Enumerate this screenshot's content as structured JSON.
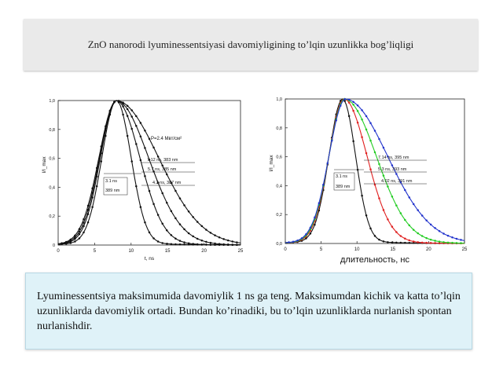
{
  "slide": {
    "title": "ZnO nanorodi lyuminessentsiyasi davomiyligining to’lqin uzunlikka bog’liqligi",
    "caption": "Lyuminessentsiya maksimumida davomiylik 1 ns ga teng. Maksimumdan kichik va katta to’lqin uzunliklarda davomiylik ortadi. Bundan ko’rinadiki, bu to’lqin uzunliklarda nurlanish spontan nurlanishdir."
  },
  "chart_data": [
    {
      "type": "line",
      "title": "",
      "xlabel": "t, ns",
      "ylabel": "I/I_max",
      "xlim": [
        0,
        25
      ],
      "ylim": [
        0,
        1.0
      ],
      "xticks": [
        "0",
        "5",
        "10",
        "15",
        "20",
        "25"
      ],
      "yticks": [
        "0",
        "0,2",
        "0,4",
        "0,6",
        "0,8",
        "1,0"
      ],
      "grid": false,
      "annotation_power": "P=2.4 Mвт/см²",
      "annotations": [
        {
          "text": "7.12 ns, 383 nm"
        },
        {
          "text": "5.7 ns, 385 nm"
        },
        {
          "text": "4.2 ns, 387 nm"
        },
        {
          "text": "3.1 ns"
        },
        {
          "text": "389 nm"
        }
      ],
      "series": [
        {
          "peak": 8.0,
          "rise": 2.0,
          "fall": 2.0,
          "color": "#111111"
        },
        {
          "peak": 8.0,
          "rise": 2.2,
          "fall": 3.2,
          "color": "#111111"
        },
        {
          "peak": 8.0,
          "rise": 2.3,
          "fall": 4.4,
          "color": "#111111"
        },
        {
          "peak": 8.0,
          "rise": 2.4,
          "fall": 5.8,
          "color": "#111111"
        }
      ]
    },
    {
      "type": "line",
      "title": "",
      "xlabel": "длительность, нс",
      "ylabel": "I/I_max",
      "xlim": [
        0,
        25
      ],
      "ylim": [
        0,
        1.0
      ],
      "xticks": [
        "0",
        "5",
        "10",
        "15",
        "20",
        "25"
      ],
      "yticks": [
        "0,0",
        "0,2",
        "0,4",
        "0,6",
        "0,8",
        "1,0"
      ],
      "grid": false,
      "annotations": [
        {
          "text": "7.14 ns, 395 nm"
        },
        {
          "text": "5.3 ns, 393 nm"
        },
        {
          "text": "4.02 ns, 391 nm"
        },
        {
          "text": "3.1 ns"
        },
        {
          "text": "389 nm"
        }
      ],
      "series": [
        {
          "peak": 8.0,
          "rise": 1.9,
          "fall": 1.8,
          "color": "#111111"
        },
        {
          "peak": 8.2,
          "rise": 2.1,
          "fall": 3.2,
          "color": "#e02020"
        },
        {
          "peak": 8.3,
          "rise": 2.2,
          "fall": 4.4,
          "color": "#22cc22"
        },
        {
          "peak": 8.4,
          "rise": 2.3,
          "fall": 5.9,
          "color": "#2233cc"
        }
      ]
    }
  ]
}
